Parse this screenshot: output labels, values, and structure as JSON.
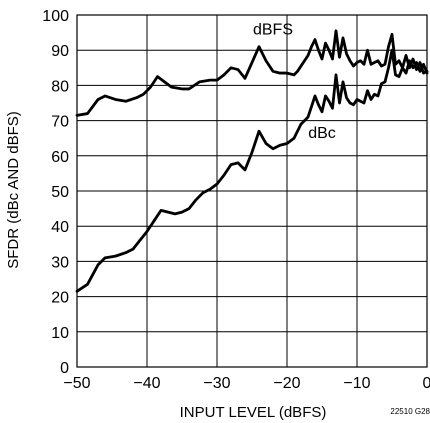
{
  "chart_data": {
    "type": "line",
    "title": "",
    "xlabel": "INPUT LEVEL (dBFS)",
    "ylabel": "SFDR (dBc AND dBFS)",
    "xlim": [
      -50,
      0
    ],
    "ylim": [
      0,
      100
    ],
    "x_ticks": [
      -50,
      -40,
      -30,
      -20,
      -10,
      0
    ],
    "y_ticks": [
      0,
      10,
      20,
      30,
      40,
      50,
      60,
      70,
      80,
      90,
      100
    ],
    "x_tick_labels": [
      "−50",
      "−40",
      "−30",
      "−20",
      "−10",
      "0"
    ],
    "y_tick_labels": [
      "0",
      "10",
      "20",
      "30",
      "40",
      "50",
      "60",
      "70",
      "80",
      "90",
      "100"
    ],
    "grid": true,
    "line_color": "#000000",
    "series": [
      {
        "name": "dBFS",
        "points": [
          [
            -50,
            71.5
          ],
          [
            -48.5,
            72
          ],
          [
            -47,
            76
          ],
          [
            -46,
            77
          ],
          [
            -44.5,
            76
          ],
          [
            -43,
            75.5
          ],
          [
            -41.5,
            76.5
          ],
          [
            -40.5,
            77.5
          ],
          [
            -39.5,
            79.5
          ],
          [
            -38.5,
            82.5
          ],
          [
            -37.5,
            81
          ],
          [
            -36.5,
            79.5
          ],
          [
            -35,
            79
          ],
          [
            -34,
            79
          ],
          [
            -32.5,
            81
          ],
          [
            -31,
            81.5
          ],
          [
            -30,
            81.5
          ],
          [
            -29,
            83
          ],
          [
            -28,
            85
          ],
          [
            -27,
            84.5
          ],
          [
            -26,
            82
          ],
          [
            -25,
            86.5
          ],
          [
            -24,
            91
          ],
          [
            -23,
            87
          ],
          [
            -22,
            84
          ],
          [
            -21,
            83.5
          ],
          [
            -20,
            83.5
          ],
          [
            -19,
            83
          ],
          [
            -18.5,
            84
          ],
          [
            -17.5,
            87
          ],
          [
            -17,
            88.5
          ],
          [
            -16.5,
            91
          ],
          [
            -16,
            93
          ],
          [
            -15.5,
            90
          ],
          [
            -15,
            87.5
          ],
          [
            -14.5,
            92
          ],
          [
            -14,
            90
          ],
          [
            -13.5,
            87.5
          ],
          [
            -13,
            95.5
          ],
          [
            -12.5,
            88
          ],
          [
            -12,
            93.5
          ],
          [
            -11.5,
            89
          ],
          [
            -11,
            87
          ],
          [
            -10.5,
            85.5
          ],
          [
            -10,
            86.5
          ],
          [
            -9.5,
            87
          ],
          [
            -9,
            86
          ],
          [
            -8.5,
            90
          ],
          [
            -8,
            86
          ],
          [
            -7.5,
            86.5
          ],
          [
            -7,
            87
          ],
          [
            -6.5,
            85.5
          ],
          [
            -6,
            86
          ],
          [
            -5.5,
            91
          ],
          [
            -5,
            94.5
          ],
          [
            -4.5,
            86
          ],
          [
            -4,
            87
          ],
          [
            -3.5,
            85
          ],
          [
            -3,
            88.5
          ],
          [
            -2.5,
            85
          ],
          [
            -2,
            87.5
          ],
          [
            -1.5,
            84.5
          ],
          [
            -1,
            86.5
          ],
          [
            -0.5,
            83.5
          ],
          [
            0,
            84
          ]
        ]
      },
      {
        "name": "dBc",
        "points": [
          [
            -50,
            21.5
          ],
          [
            -48.5,
            23.5
          ],
          [
            -47,
            29
          ],
          [
            -46,
            31
          ],
          [
            -44.5,
            31.5
          ],
          [
            -43,
            32.5
          ],
          [
            -42,
            33.5
          ],
          [
            -41,
            36
          ],
          [
            -40,
            38.5
          ],
          [
            -39,
            41.5
          ],
          [
            -38,
            44.5
          ],
          [
            -37,
            44
          ],
          [
            -36,
            43.5
          ],
          [
            -35,
            44
          ],
          [
            -34,
            45
          ],
          [
            -33,
            47.5
          ],
          [
            -32,
            49.5
          ],
          [
            -31,
            50.5
          ],
          [
            -30,
            52
          ],
          [
            -29,
            54.5
          ],
          [
            -28,
            57.5
          ],
          [
            -27,
            58
          ],
          [
            -26,
            56
          ],
          [
            -25,
            61
          ],
          [
            -24,
            67
          ],
          [
            -23,
            63.5
          ],
          [
            -22,
            62
          ],
          [
            -21,
            63
          ],
          [
            -20,
            63.5
          ],
          [
            -19,
            65
          ],
          [
            -18,
            69
          ],
          [
            -17,
            71
          ],
          [
            -16.5,
            74
          ],
          [
            -16,
            77
          ],
          [
            -15.5,
            74.5
          ],
          [
            -15,
            72.5
          ],
          [
            -14.5,
            77
          ],
          [
            -14,
            75.5
          ],
          [
            -13.5,
            73.5
          ],
          [
            -13,
            83
          ],
          [
            -12.5,
            75
          ],
          [
            -12,
            81
          ],
          [
            -11.5,
            76.5
          ],
          [
            -11,
            75
          ],
          [
            -10.5,
            74.5
          ],
          [
            -10,
            76
          ],
          [
            -9.5,
            75.5
          ],
          [
            -9,
            75
          ],
          [
            -8.5,
            78.5
          ],
          [
            -8,
            76
          ],
          [
            -7.5,
            77.5
          ],
          [
            -7,
            77
          ],
          [
            -6.5,
            80.5
          ],
          [
            -6,
            81
          ],
          [
            -5.5,
            85
          ],
          [
            -5,
            90
          ],
          [
            -4.5,
            83
          ],
          [
            -4,
            82.5
          ],
          [
            -3.5,
            85
          ],
          [
            -3,
            83.5
          ],
          [
            -2.5,
            87
          ],
          [
            -2,
            85
          ],
          [
            -1.5,
            86.5
          ],
          [
            -1,
            84
          ],
          [
            -0.5,
            86
          ],
          [
            0,
            83.5
          ]
        ]
      }
    ],
    "annotations": [
      {
        "text": "dBFS",
        "x": -22,
        "y": 94.5
      },
      {
        "text": "dBc",
        "x": -15,
        "y": 65
      }
    ]
  },
  "figure_code": "22510 G28"
}
